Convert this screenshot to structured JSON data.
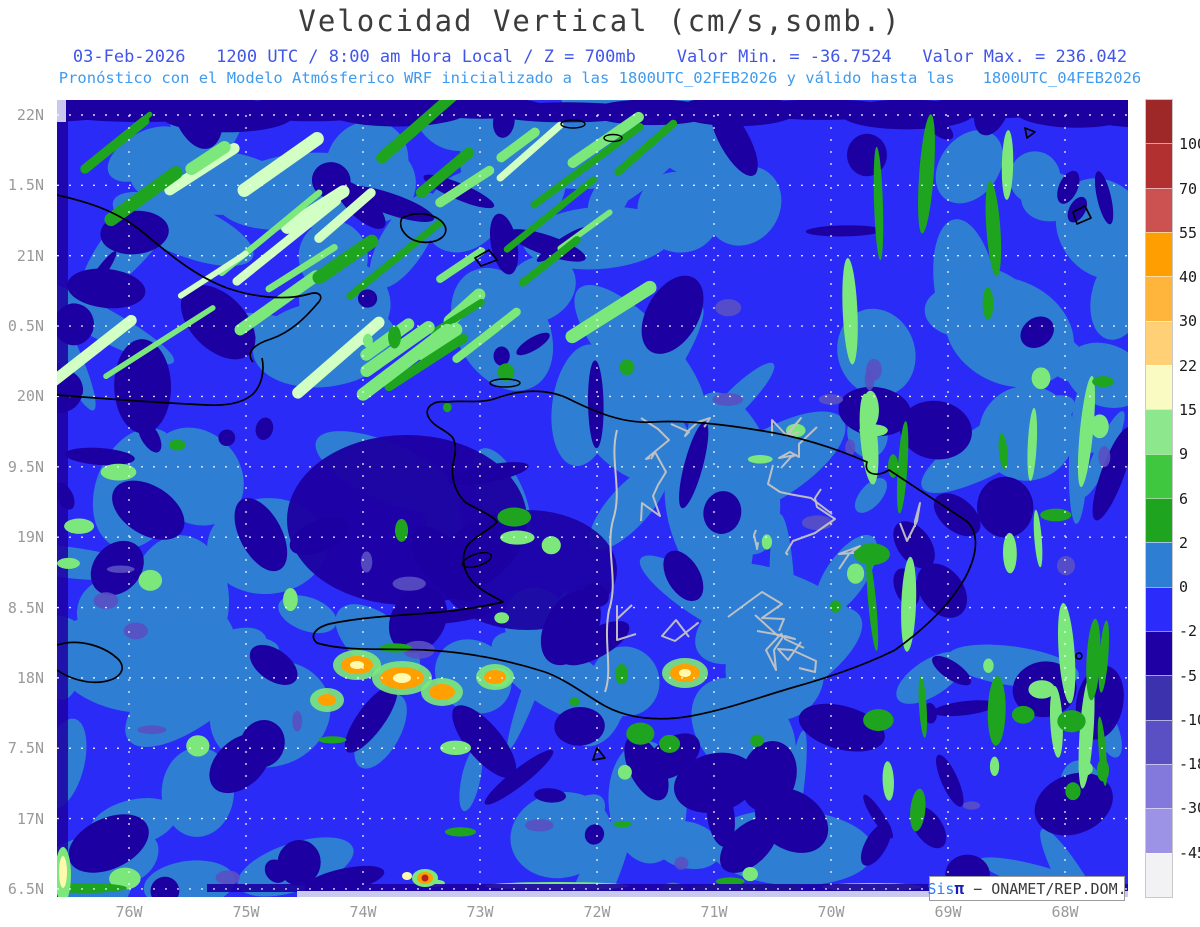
{
  "header": {
    "title": "Velocidad Vertical (cm/s,somb.)",
    "line1": "03-Feb-2026   1200 UTC / 8:00 am Hora Local / Z = 700mb    Valor Min. = -36.7524   Valor Max. = 236.042",
    "line2": "Pronóstico con el Modelo Atmósferico WRF inicializado a las 1800UTC_02FEB2026 y válido hasta las   1800UTC_04FEB2026"
  },
  "values": {
    "valor_min": -36.7524,
    "valor_max": 236.042,
    "level": "700mb"
  },
  "axes": {
    "y_tick_labels": [
      "22N",
      "1.5N",
      "21N",
      "0.5N",
      "20N",
      "9.5N",
      "19N",
      "8.5N",
      "18N",
      "7.5N",
      "17N",
      "6.5N"
    ],
    "x_tick_labels": [
      "76W",
      "75W",
      "74W",
      "73W",
      "72W",
      "71W",
      "70W",
      "69W",
      "68W"
    ]
  },
  "colorbar": {
    "levels": [
      "100",
      "70",
      "55",
      "40",
      "30",
      "22",
      "15",
      "9",
      "6",
      "2",
      "0",
      "-2",
      "-5",
      "-10",
      "-18",
      "-30",
      "-45"
    ],
    "colors": [
      "#9e2828",
      "#b33030",
      "#cc5252",
      "#ff9e00",
      "#ffb43c",
      "#ffd076",
      "#fafac3",
      "#8de88d",
      "#3fc83f",
      "#1ea41e",
      "#2e7ed3",
      "#2b2bfb",
      "#1e00a5",
      "#3c32ad",
      "#5a50c3",
      "#8378dc",
      "#9c92e6",
      "#f2f2f4"
    ]
  },
  "branding": {
    "sis": "Sis",
    "pi": "π",
    "sep": " − ",
    "org": "ONAMET/REP.DOM."
  },
  "map_palette": {
    "base": "#2b2bf8",
    "mid": "#2e7ed3",
    "navy": "#1d00a2",
    "slate": "#5a50c3",
    "green": "#1ea41e",
    "light_green": "#7ce87c",
    "pale_green": "#d2ffc3",
    "orange": "#ffa000",
    "pale_yellow": "#fdf9ad",
    "red": "#b22222",
    "lavender": "#c9c9f0",
    "grid": "#ffffff",
    "coast": "#000000",
    "province": "#c4c4c4"
  }
}
